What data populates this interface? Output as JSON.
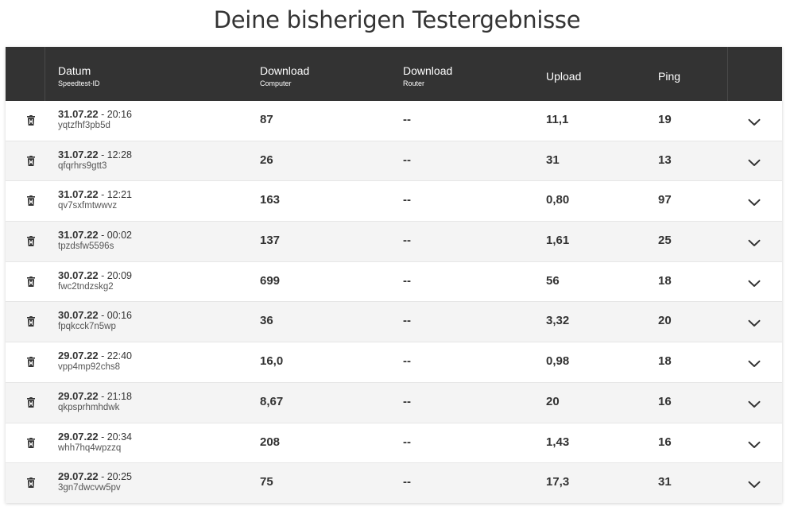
{
  "title": "Deine bisherigen Testergebnisse",
  "header": {
    "datum": "Datum",
    "speedtest_id": "Speedtest-ID",
    "download": "Download",
    "computer": "Computer",
    "download2": "Download",
    "router": "Router",
    "upload": "Upload",
    "ping": "Ping"
  },
  "rows": [
    {
      "date": "31.07.22",
      "time": " - 20:16",
      "id": "yqtzfhf3pb5d",
      "dl_computer": "87",
      "dl_router": "--",
      "upload": "11,1",
      "ping": "19"
    },
    {
      "date": "31.07.22",
      "time": " - 12:28",
      "id": "qfqrhrs9gtt3",
      "dl_computer": "26",
      "dl_router": "--",
      "upload": "31",
      "ping": "13"
    },
    {
      "date": "31.07.22",
      "time": " - 12:21",
      "id": "qv7sxfmtwwvz",
      "dl_computer": "163",
      "dl_router": "--",
      "upload": "0,80",
      "ping": "97"
    },
    {
      "date": "31.07.22",
      "time": " - 00:02",
      "id": "tpzdsfw5596s",
      "dl_computer": "137",
      "dl_router": "--",
      "upload": "1,61",
      "ping": "25"
    },
    {
      "date": "30.07.22",
      "time": " - 20:09",
      "id": "fwc2tndzskg2",
      "dl_computer": "699",
      "dl_router": "--",
      "upload": "56",
      "ping": "18"
    },
    {
      "date": "30.07.22",
      "time": " - 00:16",
      "id": "fpqkcck7n5wp",
      "dl_computer": "36",
      "dl_router": "--",
      "upload": "3,32",
      "ping": "20"
    },
    {
      "date": "29.07.22",
      "time": " - 22:40",
      "id": "vpp4mp92chs8",
      "dl_computer": "16,0",
      "dl_router": "--",
      "upload": "0,98",
      "ping": "18"
    },
    {
      "date": "29.07.22",
      "time": " - 21:18",
      "id": "qkpsprhmhdwk",
      "dl_computer": "8,67",
      "dl_router": "--",
      "upload": "20",
      "ping": "16"
    },
    {
      "date": "29.07.22",
      "time": " - 20:34",
      "id": "whh7hq4wpzzq",
      "dl_computer": "208",
      "dl_router": "--",
      "upload": "1,43",
      "ping": "16"
    },
    {
      "date": "29.07.22",
      "time": " - 20:25",
      "id": "3gn7dwcvw5pv",
      "dl_computer": "75",
      "dl_router": "--",
      "upload": "17,3",
      "ping": "31"
    }
  ],
  "colors": {
    "header_bg": "#333333",
    "row_alt": "#f4f4f4",
    "text": "#333333"
  },
  "icons": {
    "delete": "trash-icon",
    "expand": "chevron-down-icon"
  }
}
